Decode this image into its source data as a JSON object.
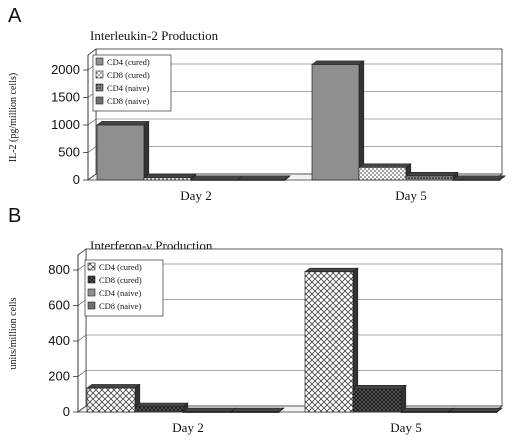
{
  "chart_data": [
    {
      "panel": "A",
      "type": "bar",
      "title": "Interleukin-2 Production",
      "ylabel": "IL-2 (pg/million cells)",
      "ylim": [
        0,
        2000
      ],
      "yticks": [
        "0",
        "500",
        "1000",
        "1500",
        "2000"
      ],
      "categories": [
        "Day 2",
        "Day 5"
      ],
      "series": [
        {
          "name": "CD4 (cured)",
          "values": [
            1000,
            2100
          ],
          "color": "#8c8c8c",
          "pattern": "solid-gray"
        },
        {
          "name": "CD8 (cured)",
          "values": [
            40,
            230
          ],
          "color": "#ffffff",
          "pattern": "dots"
        },
        {
          "name": "CD4 (naive)",
          "values": [
            10,
            75
          ],
          "color": "#555555",
          "pattern": "dense-dots"
        },
        {
          "name": "CD8 (naive)",
          "values": [
            10,
            10
          ],
          "color": "#777777",
          "pattern": "solid-dark"
        }
      ],
      "grid": true,
      "legend": "top-left"
    },
    {
      "panel": "B",
      "type": "bar",
      "title": "Interferon-γ Production",
      "ylabel": "units/million cells",
      "ylim": [
        0,
        800
      ],
      "yticks": [
        "0",
        "200",
        "400",
        "600",
        "800"
      ],
      "categories": [
        "Day 2",
        "Day 5"
      ],
      "series": [
        {
          "name": "CD4 (cured)",
          "values": [
            135,
            790
          ],
          "color": "#ffffff",
          "pattern": "crosshatch"
        },
        {
          "name": "CD8 (cured)",
          "values": [
            30,
            130
          ],
          "color": "#555555",
          "pattern": "dark-check"
        },
        {
          "name": "CD4 (naive)",
          "values": [
            2,
            2
          ],
          "color": "#999999",
          "pattern": "solid-gray"
        },
        {
          "name": "CD8 (naive)",
          "values": [
            2,
            2
          ],
          "color": "#666666",
          "pattern": "solid-dark"
        }
      ],
      "grid": true,
      "legend": "top-left"
    }
  ]
}
